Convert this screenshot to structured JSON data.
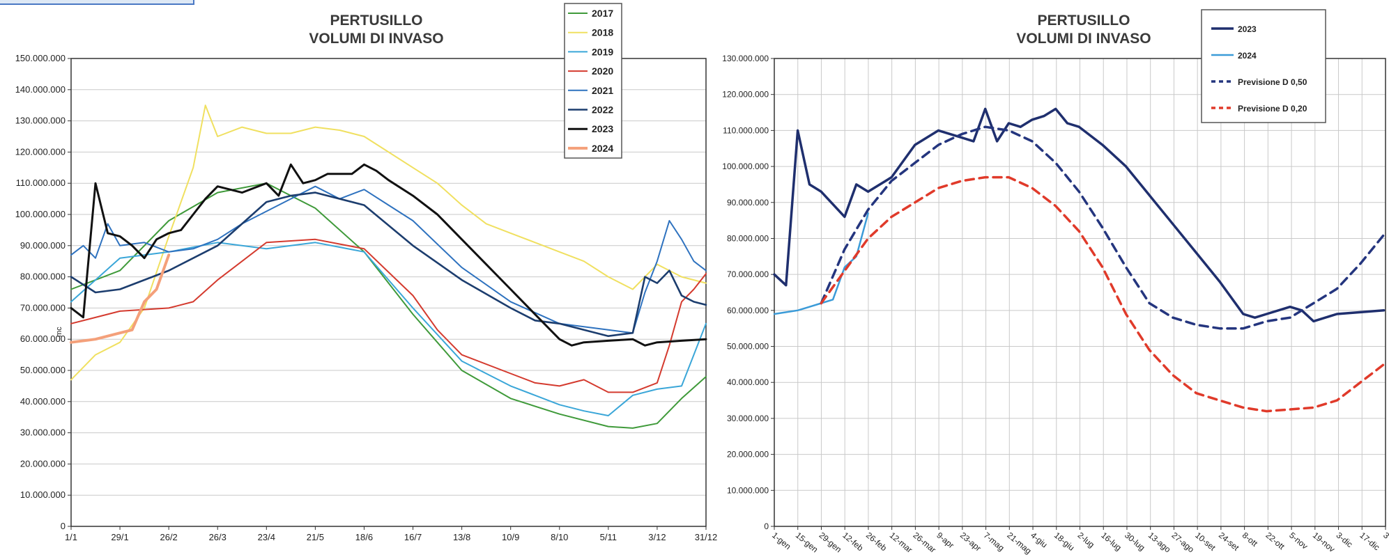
{
  "chart_data": [
    {
      "type": "line",
      "title_line1": "PERTUSILLO",
      "title_line2": "VOLUMI DI INVASO",
      "ylabel": "mc",
      "xlabel": "",
      "ylim": [
        0,
        150000000
      ],
      "y_ticks": [
        "0",
        "10.000.000",
        "20.000.000",
        "30.000.000",
        "40.000.000",
        "50.000.000",
        "60.000.000",
        "70.000.000",
        "80.000.000",
        "90.000.000",
        "100.000.000",
        "110.000.000",
        "120.000.000",
        "130.000.000",
        "140.000.000",
        "150.000.000"
      ],
      "x_ticks": [
        "1/1",
        "29/1",
        "26/2",
        "26/3",
        "23/4",
        "21/5",
        "18/6",
        "16/7",
        "13/8",
        "10/9",
        "8/10",
        "5/11",
        "3/12",
        "31/12"
      ],
      "grid": true,
      "legend_position": "top-right",
      "series": [
        {
          "name": "2017",
          "color": "#3f9a3a",
          "width": 2,
          "x": [
            "1/1",
            "29/1",
            "26/2",
            "26/3",
            "23/4",
            "21/5",
            "18/6",
            "16/7",
            "13/8",
            "10/9",
            "8/10",
            "5/11",
            "19/11",
            "3/12",
            "17/12",
            "31/12"
          ],
          "values": [
            76000000,
            82000000,
            98000000,
            107000000,
            110000000,
            102000000,
            88000000,
            68000000,
            50000000,
            41000000,
            36000000,
            32000000,
            31500000,
            33000000,
            41000000,
            48000000
          ]
        },
        {
          "name": "2018",
          "color": "#f0e060",
          "width": 2,
          "x": [
            "1/1",
            "15/1",
            "29/1",
            "12/2",
            "26/2",
            "12/3",
            "19/3",
            "26/3",
            "9/4",
            "23/4",
            "7/5",
            "21/5",
            "4/6",
            "18/6",
            "2/7",
            "16/7",
            "30/7",
            "13/8",
            "27/8",
            "10/9",
            "24/9",
            "8/10",
            "22/10",
            "5/11",
            "19/11",
            "3/12",
            "17/12",
            "31/12"
          ],
          "values": [
            47000000,
            55000000,
            59000000,
            70000000,
            93000000,
            115000000,
            135000000,
            125000000,
            128000000,
            126000000,
            126000000,
            128000000,
            127000000,
            125000000,
            120000000,
            115000000,
            110000000,
            103000000,
            97000000,
            94000000,
            91000000,
            88000000,
            85000000,
            80000000,
            76000000,
            84000000,
            80000000,
            78000000
          ]
        },
        {
          "name": "2019",
          "color": "#3aa6d8",
          "width": 2,
          "x": [
            "1/1",
            "29/1",
            "26/2",
            "26/3",
            "23/4",
            "21/5",
            "18/6",
            "16/7",
            "13/8",
            "10/9",
            "24/9",
            "8/10",
            "22/10",
            "5/11",
            "19/11",
            "3/12",
            "17/12",
            "24/12",
            "31/12"
          ],
          "values": [
            72000000,
            86000000,
            88000000,
            91000000,
            89000000,
            91000000,
            88000000,
            70000000,
            53000000,
            45000000,
            42000000,
            39000000,
            37000000,
            35500000,
            42000000,
            44000000,
            45000000,
            55000000,
            65000000
          ]
        },
        {
          "name": "2020",
          "color": "#d43a2e",
          "width": 2,
          "x": [
            "1/1",
            "29/1",
            "26/2",
            "12/3",
            "26/3",
            "9/4",
            "23/4",
            "21/5",
            "18/6",
            "16/7",
            "30/7",
            "13/8",
            "10/9",
            "24/9",
            "8/10",
            "22/10",
            "5/11",
            "19/11",
            "3/12",
            "10/12",
            "17/12",
            "24/12",
            "31/12"
          ],
          "values": [
            65000000,
            69000000,
            70000000,
            72000000,
            79000000,
            85000000,
            91000000,
            92000000,
            89000000,
            74000000,
            63000000,
            55000000,
            49000000,
            46000000,
            45000000,
            47000000,
            43000000,
            43000000,
            46000000,
            58000000,
            72000000,
            76000000,
            81000000
          ]
        },
        {
          "name": "2021",
          "color": "#2e72bf",
          "width": 2,
          "x": [
            "1/1",
            "8/1",
            "15/1",
            "22/1",
            "29/1",
            "12/2",
            "26/2",
            "12/3",
            "26/3",
            "9/4",
            "23/4",
            "7/5",
            "21/5",
            "4/6",
            "18/6",
            "2/7",
            "16/7",
            "13/8",
            "10/9",
            "8/10",
            "22/10",
            "5/11",
            "19/11",
            "26/11",
            "3/12",
            "10/12",
            "17/12",
            "24/12",
            "31/12"
          ],
          "values": [
            87000000,
            90000000,
            86000000,
            97000000,
            90000000,
            91000000,
            88000000,
            89000000,
            92000000,
            97000000,
            101000000,
            105000000,
            109000000,
            105000000,
            108000000,
            103000000,
            98000000,
            83000000,
            72000000,
            65000000,
            64000000,
            63000000,
            62000000,
            75000000,
            85000000,
            98000000,
            92000000,
            85000000,
            82000000
          ]
        },
        {
          "name": "2022",
          "color": "#1c3d6e",
          "width": 2.6,
          "x": [
            "1/1",
            "15/1",
            "29/1",
            "26/2",
            "26/3",
            "9/4",
            "23/4",
            "7/5",
            "21/5",
            "18/6",
            "16/7",
            "13/8",
            "10/9",
            "24/9",
            "8/10",
            "22/10",
            "5/11",
            "19/11",
            "26/11",
            "3/12",
            "10/12",
            "17/12",
            "24/12",
            "31/12"
          ],
          "values": [
            80000000,
            75000000,
            76000000,
            82000000,
            90000000,
            97000000,
            104000000,
            106000000,
            107000000,
            103000000,
            90000000,
            79000000,
            70000000,
            66000000,
            65000000,
            63000000,
            61000000,
            62000000,
            80000000,
            78000000,
            82000000,
            74000000,
            72000000,
            71000000
          ]
        },
        {
          "name": "2023",
          "color": "#111111",
          "width": 3,
          "x": [
            "1/1",
            "8/1",
            "15/1",
            "22/1",
            "29/1",
            "5/2",
            "12/2",
            "19/2",
            "26/2",
            "5/3",
            "12/3",
            "19/3",
            "26/3",
            "9/4",
            "23/4",
            "30/4",
            "7/5",
            "14/5",
            "21/5",
            "28/5",
            "4/6",
            "11/6",
            "18/6",
            "25/6",
            "2/7",
            "16/7",
            "30/7",
            "13/8",
            "27/8",
            "10/9",
            "24/9",
            "8/10",
            "15/10",
            "22/10",
            "5/11",
            "19/11",
            "26/11",
            "3/12",
            "17/12",
            "31/12"
          ],
          "values": [
            70000000,
            67000000,
            110000000,
            94000000,
            93000000,
            90000000,
            86000000,
            92000000,
            94000000,
            95000000,
            100000000,
            105000000,
            109000000,
            107000000,
            110000000,
            106000000,
            116000000,
            110000000,
            111000000,
            113000000,
            113000000,
            113000000,
            116000000,
            114000000,
            111000000,
            106000000,
            100000000,
            92000000,
            84000000,
            76000000,
            68000000,
            60000000,
            58000000,
            59000000,
            59500000,
            60000000,
            58000000,
            59000000,
            59500000,
            60000000
          ]
        },
        {
          "name": "2024",
          "color": "#f4a07a",
          "width": 4,
          "x": [
            "1/1",
            "15/1",
            "29/1",
            "5/2",
            "12/2",
            "19/2",
            "26/2"
          ],
          "values": [
            59000000,
            60000000,
            62000000,
            63000000,
            72000000,
            76000000,
            87000000
          ]
        }
      ]
    },
    {
      "type": "line",
      "title_line1": "PERTUSILLO",
      "title_line2": "VOLUMI DI INVASO",
      "xlabel": "",
      "ylabel": "",
      "ylim": [
        0,
        130000000
      ],
      "y_ticks": [
        "0",
        "10.000.000",
        "20.000.000",
        "30.000.000",
        "40.000.000",
        "50.000.000",
        "60.000.000",
        "70.000.000",
        "80.000.000",
        "90.000.000",
        "100.000.000",
        "110.000.000",
        "120.000.000",
        "130.000.000"
      ],
      "x_ticks": [
        "1-gen",
        "15-gen",
        "29-gen",
        "12-feb",
        "26-feb",
        "12-mar",
        "26-mar",
        "9-apr",
        "23-apr",
        "7-mag",
        "21-mag",
        "4-giu",
        "18-giu",
        "2-lug",
        "16-lug",
        "30-lug",
        "13-ago",
        "27-ago",
        "10-set",
        "24-set",
        "8-ott",
        "22-ott",
        "5-nov",
        "19-nov",
        "3-dic",
        "17-dic",
        "3"
      ],
      "grid": true,
      "legend_position": "top-right",
      "series": [
        {
          "name": "2023",
          "color": "#1f2f6e",
          "width": 3.5,
          "dash": "",
          "x": [
            "1-gen",
            "8-gen",
            "15-gen",
            "22-gen",
            "29-gen",
            "12-feb",
            "19-feb",
            "26-feb",
            "12-mar",
            "26-mar",
            "9-apr",
            "23-apr",
            "30-apr",
            "7-mag",
            "14-mag",
            "21-mag",
            "28-mag",
            "4-giu",
            "11-giu",
            "18-giu",
            "25-giu",
            "2-lug",
            "16-lug",
            "30-lug",
            "13-ago",
            "27-ago",
            "10-set",
            "24-set",
            "8-ott",
            "15-ott",
            "22-ott",
            "5-nov",
            "12-nov",
            "19-nov",
            "3-dic",
            "17-dic",
            "31-dic"
          ],
          "values": [
            70000000,
            67000000,
            110000000,
            95000000,
            93000000,
            86000000,
            95000000,
            93000000,
            97000000,
            106000000,
            110000000,
            108000000,
            107000000,
            116000000,
            107000000,
            112000000,
            111000000,
            113000000,
            114000000,
            116000000,
            112000000,
            111000000,
            106000000,
            100000000,
            92000000,
            84000000,
            76000000,
            68000000,
            59000000,
            58000000,
            59000000,
            61000000,
            60000000,
            57000000,
            59000000,
            59500000,
            60000000
          ]
        },
        {
          "name": "2024",
          "color": "#3b9bd8",
          "width": 2.5,
          "dash": "",
          "x": [
            "1-gen",
            "15-gen",
            "22-gen",
            "29-gen",
            "5-feb",
            "12-feb",
            "19-feb",
            "26-feb"
          ],
          "values": [
            59000000,
            60000000,
            61000000,
            62000000,
            63000000,
            72000000,
            75000000,
            87000000
          ]
        },
        {
          "name": "Previsione D 0,50",
          "color": "#24357e",
          "width": 3.5,
          "dash": "12 8",
          "x": [
            "29-gen",
            "12-feb",
            "26-feb",
            "12-mar",
            "26-mar",
            "9-apr",
            "23-apr",
            "7-mag",
            "21-mag",
            "4-giu",
            "18-giu",
            "2-lug",
            "16-lug",
            "30-lug",
            "13-ago",
            "27-ago",
            "10-set",
            "24-set",
            "8-ott",
            "22-ott",
            "5-nov",
            "19-nov",
            "3-dic",
            "17-dic",
            "31-dic"
          ],
          "values": [
            62000000,
            77000000,
            88000000,
            96000000,
            101000000,
            106000000,
            109000000,
            111000000,
            110000000,
            107000000,
            101000000,
            93000000,
            83000000,
            72000000,
            62000000,
            58000000,
            56000000,
            55000000,
            55000000,
            57000000,
            58000000,
            62000000,
            66000000,
            73000000,
            81000000
          ]
        },
        {
          "name": "Previsione D 0,20",
          "color": "#e03a2a",
          "width": 3.5,
          "dash": "12 8",
          "x": [
            "29-gen",
            "12-feb",
            "26-feb",
            "12-mar",
            "26-mar",
            "9-apr",
            "23-apr",
            "7-mag",
            "21-mag",
            "4-giu",
            "18-giu",
            "2-lug",
            "16-lug",
            "30-lug",
            "13-ago",
            "27-ago",
            "10-set",
            "24-set",
            "8-ott",
            "22-ott",
            "5-nov",
            "19-nov",
            "3-dic",
            "17-dic",
            "31-dic"
          ],
          "values": [
            62000000,
            71000000,
            80000000,
            86000000,
            90000000,
            94000000,
            96000000,
            97000000,
            97000000,
            94000000,
            89000000,
            82000000,
            72000000,
            59000000,
            49000000,
            42000000,
            37000000,
            35000000,
            33000000,
            32000000,
            32500000,
            33000000,
            35000000,
            40000000,
            45000000
          ]
        }
      ]
    }
  ]
}
